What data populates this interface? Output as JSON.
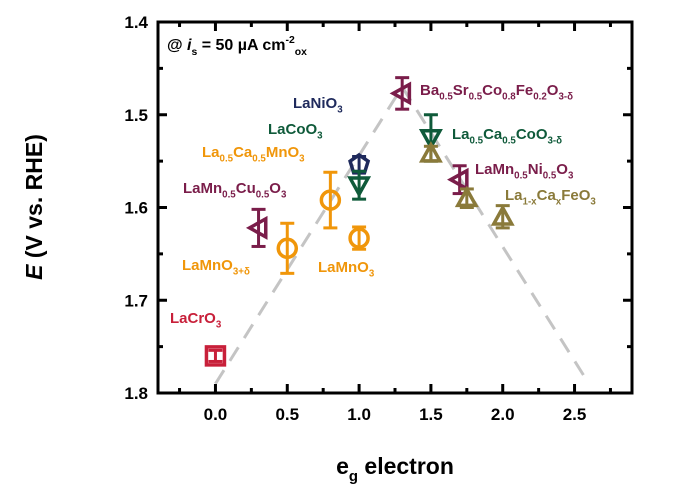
{
  "chart_data": {
    "type": "scatter",
    "title": "",
    "xlabel": "e_g electron",
    "xlabel_parts": [
      {
        "t": "e"
      },
      {
        "t": "g",
        "s": "sub"
      },
      {
        "t": " electron"
      }
    ],
    "ylabel_parts": [
      {
        "t": "E",
        "i": true
      },
      {
        "t": " (V vs. RHE)"
      }
    ],
    "ylabel": "E (V vs. RHE)",
    "xlim": [
      -0.4,
      2.9
    ],
    "ylim": [
      1.4,
      1.8
    ],
    "y_inverted": true,
    "xticks": [
      "0.0",
      "0.5",
      "1.0",
      "1.5",
      "2.0",
      "2.5"
    ],
    "xtick_values": [
      0,
      0.5,
      1.0,
      1.5,
      2.0,
      2.5
    ],
    "yticks": [
      "1.4",
      "1.5",
      "1.6",
      "1.7",
      "1.8"
    ],
    "ytick_values": [
      1.4,
      1.5,
      1.6,
      1.7,
      1.8
    ],
    "annotation_parts": [
      {
        "t": "@ "
      },
      {
        "t": "i",
        "i": true
      },
      {
        "t": "s",
        "s": "sub"
      },
      {
        "t": " = 50 µA cm"
      },
      {
        "t": "-2",
        "s": "sup"
      },
      {
        "t": "ox",
        "s": "sub"
      }
    ],
    "volcano_guide": [
      [
        0.0,
        1.79
      ],
      [
        1.3,
        1.47
      ],
      [
        2.6,
        1.79
      ]
    ],
    "series": [
      {
        "name": "LaCrO3",
        "color": "#c8203a",
        "marker": "square",
        "points": [
          {
            "x": 0.0,
            "y": 1.76,
            "err": 0.006
          }
        ],
        "label": [
          {
            "t": "LaCrO"
          },
          {
            "t": "3",
            "s": "sub"
          }
        ]
      },
      {
        "name": "LaMn0.5Cu0.5O3",
        "color": "#7a1d4a",
        "marker": "triangle-left",
        "points": [
          {
            "x": 0.3,
            "y": 1.622,
            "err": 0.02
          }
        ],
        "label": [
          {
            "t": "LaMn"
          },
          {
            "t": "0.5",
            "s": "sub"
          },
          {
            "t": "Cu"
          },
          {
            "t": "0.5",
            "s": "sub"
          },
          {
            "t": "O"
          },
          {
            "t": "3",
            "s": "sub"
          }
        ]
      },
      {
        "name": "LaMnO3+δ",
        "color": "#f0960a",
        "marker": "circle",
        "points": [
          {
            "x": 0.5,
            "y": 1.644,
            "err": 0.027
          }
        ],
        "label": [
          {
            "t": "LaMnO"
          },
          {
            "t": "3+δ",
            "s": "sub"
          }
        ]
      },
      {
        "name": "La0.5Ca0.5MnO3",
        "color": "#f0960a",
        "marker": "circle",
        "points": [
          {
            "x": 0.8,
            "y": 1.592,
            "err": 0.03
          }
        ],
        "label": [
          {
            "t": "La"
          },
          {
            "t": "0.5",
            "s": "sub"
          },
          {
            "t": "Ca"
          },
          {
            "t": "0.5",
            "s": "sub"
          },
          {
            "t": "MnO"
          },
          {
            "t": "3",
            "s": "sub"
          }
        ]
      },
      {
        "name": "LaMnO3",
        "color": "#f0960a",
        "marker": "circle",
        "points": [
          {
            "x": 1.0,
            "y": 1.633,
            "err": 0.012
          }
        ],
        "label": [
          {
            "t": "LaMnO"
          },
          {
            "t": "3",
            "s": "sub"
          }
        ]
      },
      {
        "name": "LaNiO3",
        "color": "#1f2a5c",
        "marker": "diamond",
        "points": [
          {
            "x": 1.0,
            "y": 1.553,
            "err": 0.008
          }
        ],
        "label": [
          {
            "t": "LaNiO"
          },
          {
            "t": "3",
            "s": "sub"
          }
        ]
      },
      {
        "name": "LaCoO3",
        "color": "#0f5a3a",
        "marker": "triangle-down",
        "points": [
          {
            "x": 1.0,
            "y": 1.576,
            "err": 0.015
          }
        ],
        "label": [
          {
            "t": "LaCoO"
          },
          {
            "t": "3",
            "s": "sub"
          }
        ]
      },
      {
        "name": "Ba0.5Sr0.5Co0.8Fe0.2O3-δ",
        "color": "#7a1d4a",
        "marker": "triangle-left",
        "points": [
          {
            "x": 1.3,
            "y": 1.477,
            "err": 0.017
          }
        ],
        "label": [
          {
            "t": "Ba"
          },
          {
            "t": "0.5",
            "s": "sub"
          },
          {
            "t": "Sr"
          },
          {
            "t": "0.5",
            "s": "sub"
          },
          {
            "t": "Co"
          },
          {
            "t": "0.8",
            "s": "sub"
          },
          {
            "t": "Fe"
          },
          {
            "t": "0.2",
            "s": "sub"
          },
          {
            "t": "O"
          },
          {
            "t": "3-δ",
            "s": "sub"
          }
        ]
      },
      {
        "name": "La0.5Ca0.5CoO3-δ",
        "color": "#0f5a3a",
        "marker": "triangle-down",
        "points": [
          {
            "x": 1.5,
            "y": 1.525,
            "err": 0.025
          }
        ],
        "label": [
          {
            "t": "La"
          },
          {
            "t": "0.5",
            "s": "sub"
          },
          {
            "t": "Ca"
          },
          {
            "t": "0.5",
            "s": "sub"
          },
          {
            "t": "CoO"
          },
          {
            "t": "3-δ",
            "s": "sub"
          }
        ]
      },
      {
        "name": "LaMn0.5Ni0.5O3",
        "color": "#7a1d4a",
        "marker": "triangle-left",
        "points": [
          {
            "x": 1.7,
            "y": 1.57,
            "err": 0.015
          }
        ],
        "label": [
          {
            "t": "LaMn"
          },
          {
            "t": "0.5",
            "s": "sub"
          },
          {
            "t": "Ni"
          },
          {
            "t": "0.5",
            "s": "sub"
          },
          {
            "t": "O"
          },
          {
            "t": "3",
            "s": "sub"
          }
        ]
      },
      {
        "name": "La1-xCaxFeO3",
        "color": "#8a7a3a",
        "marker": "triangle-up",
        "points": [
          {
            "x": 1.5,
            "y": 1.542,
            "err": 0.008
          },
          {
            "x": 1.75,
            "y": 1.59,
            "err": 0.01
          },
          {
            "x": 2.0,
            "y": 1.61,
            "err": 0.012
          }
        ],
        "label": [
          {
            "t": "La"
          },
          {
            "t": "1-x",
            "s": "sub"
          },
          {
            "t": "Ca"
          },
          {
            "t": "x",
            "s": "sub"
          },
          {
            "t": "FeO"
          },
          {
            "t": "3",
            "s": "sub"
          }
        ]
      }
    ]
  }
}
